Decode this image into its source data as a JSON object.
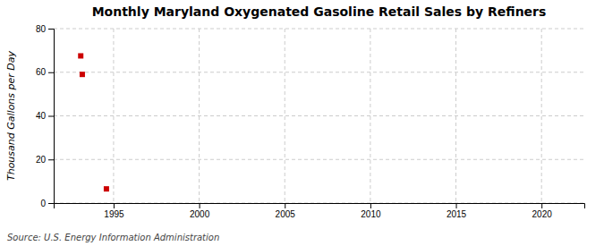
{
  "chart_data": {
    "type": "scatter",
    "title": "Monthly Maryland Oxygenated Gasoline Retail Sales by Refiners",
    "ylabel": "Thousand Gallons per Day",
    "annotations": [
      "Source: U.S. Energy Information Administration"
    ],
    "x": [
      1993.08,
      1993.17,
      1994.58
    ],
    "values": [
      67.5,
      59.0,
      6.5
    ],
    "color": "#cc0000",
    "marker": "square",
    "xlim": [
      1991.5,
      2022.5
    ],
    "xticks": [
      1995,
      2000,
      2005,
      2010,
      2015,
      2020
    ],
    "ylim": [
      0,
      80
    ],
    "yticks": [
      0,
      20,
      40,
      60,
      80
    ],
    "grid": true
  }
}
